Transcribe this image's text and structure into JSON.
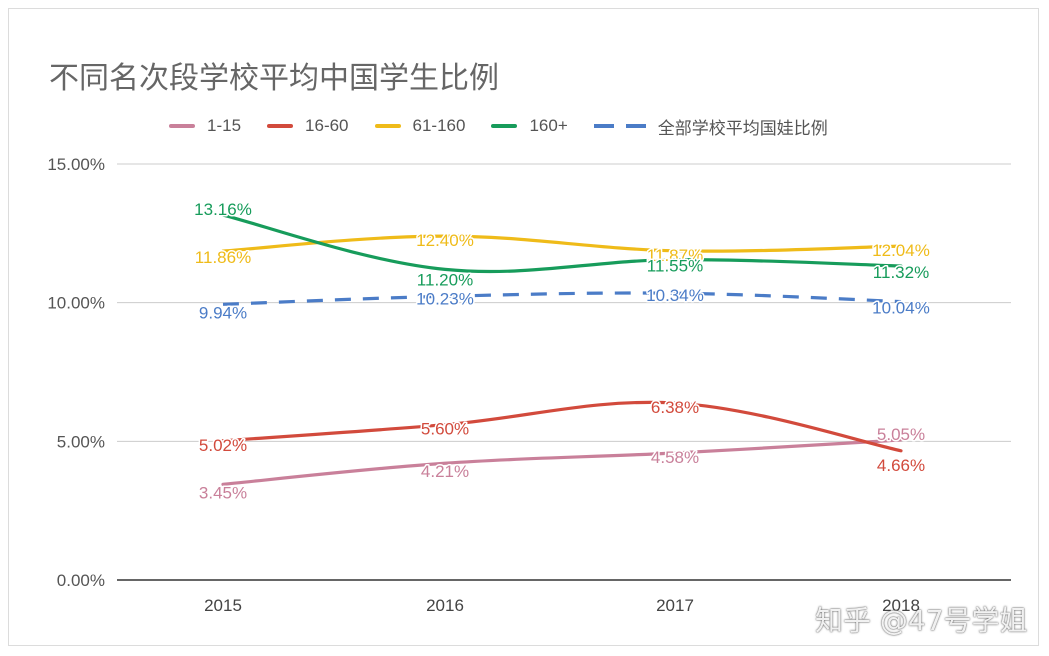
{
  "chart_data": {
    "type": "line",
    "title": "不同名次段学校平均中国学生比例",
    "categories": [
      "2015",
      "2016",
      "2017",
      "2018"
    ],
    "y_ticks": [
      "0.00%",
      "5.00%",
      "10.00%",
      "15.00%"
    ],
    "ylim": [
      0,
      15
    ],
    "grid": true,
    "legend_position": "top",
    "series": [
      {
        "name": "1-15",
        "color": "#c9809a",
        "dashed": false,
        "values": [
          3.45,
          4.21,
          4.58,
          5.05
        ],
        "labels": [
          "3.45%",
          "4.21%",
          "4.58%",
          "5.05%"
        ]
      },
      {
        "name": "16-60",
        "color": "#d24a3c",
        "dashed": false,
        "values": [
          5.02,
          5.6,
          6.38,
          4.66
        ],
        "labels": [
          "5.02%",
          "5.60%",
          "6.38%",
          "4.66%"
        ]
      },
      {
        "name": "61-160",
        "color": "#efbb19",
        "dashed": false,
        "values": [
          11.86,
          12.4,
          11.87,
          12.04
        ],
        "labels": [
          "11.86%",
          "12.40%",
          "11.87%",
          "12.04%"
        ]
      },
      {
        "name": "160+",
        "color": "#179c5b",
        "dashed": false,
        "values": [
          13.16,
          11.2,
          11.55,
          11.32
        ],
        "labels": [
          "13.16%",
          "11.20%",
          "11.55%",
          "11.32%"
        ]
      },
      {
        "name": "全部学校平均国娃比例",
        "color": "#4b7cc7",
        "dashed": true,
        "values": [
          9.94,
          10.23,
          10.34,
          10.04
        ],
        "labels": [
          "9.94%",
          "10.23%",
          "10.34%",
          "10.04%"
        ]
      }
    ]
  },
  "watermark": "知乎 @47号学姐"
}
